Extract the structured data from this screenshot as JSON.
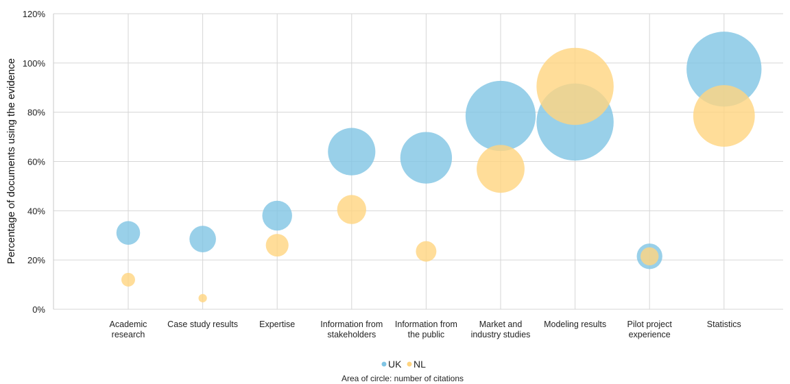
{
  "chart_data": {
    "type": "bubble",
    "ylabel": "Percentage of documents using the evidence",
    "ylim": [
      0,
      120
    ],
    "y_ticks": [
      "0%",
      "20%",
      "40%",
      "60%",
      "80%",
      "100%",
      "120%"
    ],
    "y_tick_values": [
      0,
      20,
      40,
      60,
      80,
      100,
      120
    ],
    "categories": [
      [
        "Academic",
        "research"
      ],
      [
        "Case study results"
      ],
      [
        "Expertise"
      ],
      [
        "Information from",
        "stakeholders"
      ],
      [
        "Information from",
        "the public"
      ],
      [
        "Market and",
        "industry studies"
      ],
      [
        "Modeling results"
      ],
      [
        "Pilot project",
        "experience"
      ],
      [
        "Statistics"
      ]
    ],
    "series": [
      {
        "name": "UK",
        "color": "#7fc4e4",
        "values": [
          31,
          28.5,
          38,
          64,
          61.5,
          78.5,
          76,
          21.5,
          97.5
        ],
        "citations": [
          12,
          15,
          19,
          48,
          57,
          105,
          127,
          14,
          120
        ]
      },
      {
        "name": "NL",
        "color": "#ffd47f",
        "values": [
          12,
          4.5,
          26,
          40.5,
          23.5,
          57,
          90.5,
          21.5,
          78.5
        ],
        "citations": [
          4,
          1.5,
          11,
          18,
          9,
          49,
          127,
          7,
          81
        ]
      }
    ],
    "grid": true,
    "legend_position": "bottom",
    "note": "Area of circle: number of citations"
  }
}
